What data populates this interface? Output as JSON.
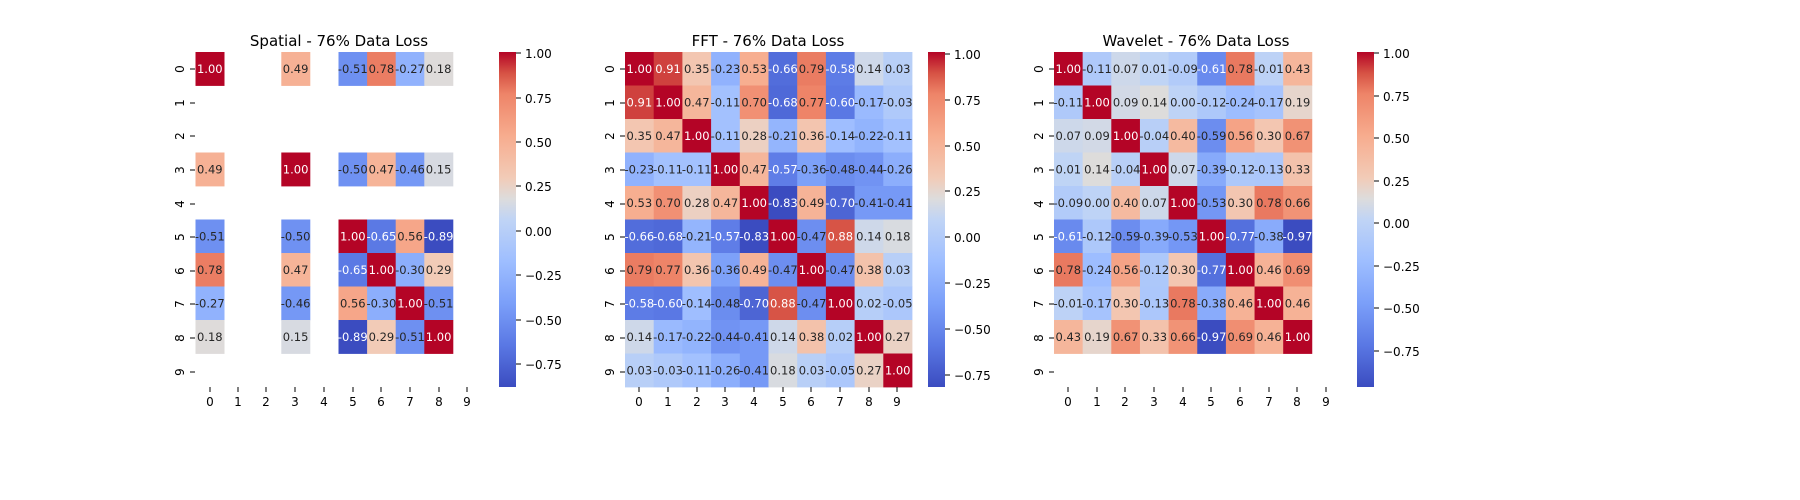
{
  "chart_data": [
    {
      "type": "heatmap",
      "title": "Spatial - 76% Data Loss",
      "x_ticks": [
        "0",
        "1",
        "2",
        "3",
        "4",
        "5",
        "6",
        "7",
        "8",
        "9"
      ],
      "y_ticks": [
        "0",
        "1",
        "2",
        "3",
        "4",
        "5",
        "6",
        "7",
        "8",
        "9"
      ],
      "values": [
        [
          1.0,
          null,
          null,
          0.49,
          null,
          -0.51,
          0.78,
          -0.27,
          0.18,
          null
        ],
        [
          null,
          null,
          null,
          null,
          null,
          null,
          null,
          null,
          null,
          null
        ],
        [
          null,
          null,
          null,
          null,
          null,
          null,
          null,
          null,
          null,
          null
        ],
        [
          0.49,
          null,
          null,
          1.0,
          null,
          -0.5,
          0.47,
          -0.46,
          0.15,
          null
        ],
        [
          null,
          null,
          null,
          null,
          null,
          null,
          null,
          null,
          null,
          null
        ],
        [
          -0.51,
          null,
          null,
          -0.5,
          null,
          1.0,
          -0.65,
          0.56,
          -0.89,
          null
        ],
        [
          0.78,
          null,
          null,
          0.47,
          null,
          -0.65,
          1.0,
          -0.3,
          0.29,
          null
        ],
        [
          -0.27,
          null,
          null,
          -0.46,
          null,
          0.56,
          -0.3,
          1.0,
          -0.51,
          null
        ],
        [
          0.18,
          null,
          null,
          0.15,
          null,
          -0.89,
          0.29,
          -0.51,
          1.0,
          null
        ],
        [
          null,
          null,
          null,
          null,
          null,
          null,
          null,
          null,
          null,
          null
        ]
      ],
      "colorbar": {
        "colormap": "coolwarm",
        "vmin": -0.89,
        "vmax": 1.0,
        "ticks": [
          "1.00",
          "0.75",
          "0.50",
          "0.25",
          "0.00",
          "−0.25",
          "−0.50",
          "−0.75"
        ]
      }
    },
    {
      "type": "heatmap",
      "title": "FFT - 76% Data Loss",
      "x_ticks": [
        "0",
        "1",
        "2",
        "3",
        "4",
        "5",
        "6",
        "7",
        "8",
        "9"
      ],
      "y_ticks": [
        "0",
        "1",
        "2",
        "3",
        "4",
        "5",
        "6",
        "7",
        "8",
        "9"
      ],
      "values": [
        [
          1.0,
          0.91,
          0.35,
          -0.23,
          0.53,
          -0.66,
          0.79,
          -0.58,
          0.14,
          0.03
        ],
        [
          0.91,
          1.0,
          0.47,
          -0.11,
          0.7,
          -0.68,
          0.77,
          -0.6,
          -0.17,
          -0.03
        ],
        [
          0.35,
          0.47,
          1.0,
          -0.11,
          0.28,
          -0.21,
          0.36,
          -0.14,
          -0.22,
          -0.11
        ],
        [
          -0.23,
          -0.11,
          -0.11,
          1.0,
          0.47,
          -0.57,
          -0.36,
          -0.48,
          -0.44,
          -0.26
        ],
        [
          0.53,
          0.7,
          0.28,
          0.47,
          1.0,
          -0.83,
          0.49,
          -0.7,
          -0.41,
          -0.41
        ],
        [
          -0.66,
          -0.68,
          -0.21,
          -0.57,
          -0.83,
          1.0,
          -0.47,
          0.88,
          0.14,
          0.18
        ],
        [
          0.79,
          0.77,
          0.36,
          -0.36,
          0.49,
          -0.47,
          1.0,
          -0.47,
          0.38,
          0.03
        ],
        [
          -0.58,
          -0.6,
          -0.14,
          -0.48,
          -0.7,
          0.88,
          -0.47,
          1.0,
          0.02,
          -0.05
        ],
        [
          0.14,
          -0.17,
          -0.22,
          -0.44,
          -0.41,
          0.14,
          0.38,
          0.02,
          1.0,
          0.27
        ],
        [
          0.03,
          -0.03,
          -0.11,
          -0.26,
          -0.41,
          0.18,
          0.03,
          -0.05,
          0.27,
          1.0
        ]
      ],
      "colorbar": {
        "colormap": "coolwarm",
        "vmin": -0.83,
        "vmax": 1.0,
        "ticks": [
          "1.00",
          "0.75",
          "0.50",
          "0.25",
          "0.00",
          "−0.25",
          "−0.50",
          "−0.75"
        ]
      }
    },
    {
      "type": "heatmap",
      "title": "Wavelet - 76% Data Loss",
      "x_ticks": [
        "0",
        "1",
        "2",
        "3",
        "4",
        "5",
        "6",
        "7",
        "8",
        "9"
      ],
      "y_ticks": [
        "0",
        "1",
        "2",
        "3",
        "4",
        "5",
        "6",
        "7",
        "8",
        "9"
      ],
      "values": [
        [
          1.0,
          -0.11,
          0.07,
          0.01,
          -0.09,
          -0.61,
          0.78,
          -0.01,
          0.43,
          null
        ],
        [
          -0.11,
          1.0,
          0.09,
          0.14,
          0.0,
          -0.12,
          -0.24,
          -0.17,
          0.19,
          null
        ],
        [
          0.07,
          0.09,
          1.0,
          -0.04,
          0.4,
          -0.59,
          0.56,
          0.3,
          0.67,
          null
        ],
        [
          0.01,
          0.14,
          -0.04,
          1.0,
          0.07,
          -0.39,
          -0.12,
          -0.13,
          0.33,
          null
        ],
        [
          -0.09,
          0.0,
          0.4,
          0.07,
          1.0,
          -0.53,
          0.3,
          0.78,
          0.66,
          null
        ],
        [
          -0.61,
          -0.12,
          -0.59,
          -0.39,
          -0.53,
          1.0,
          -0.77,
          -0.38,
          -0.97,
          null
        ],
        [
          0.78,
          -0.24,
          0.56,
          -0.12,
          0.3,
          -0.77,
          1.0,
          0.46,
          0.69,
          null
        ],
        [
          -0.01,
          -0.17,
          0.3,
          -0.13,
          0.78,
          -0.38,
          0.46,
          1.0,
          0.46,
          null
        ],
        [
          0.43,
          0.19,
          0.67,
          0.33,
          0.66,
          -0.97,
          0.69,
          0.46,
          1.0,
          null
        ],
        [
          null,
          null,
          null,
          null,
          null,
          null,
          null,
          null,
          null,
          null
        ]
      ],
      "colorbar": {
        "colormap": "coolwarm",
        "vmin": -0.97,
        "vmax": 1.0,
        "ticks": [
          "1.00",
          "0.75",
          "0.50",
          "0.25",
          "0.00",
          "−0.25",
          "−0.50",
          "−0.75"
        ]
      }
    }
  ]
}
